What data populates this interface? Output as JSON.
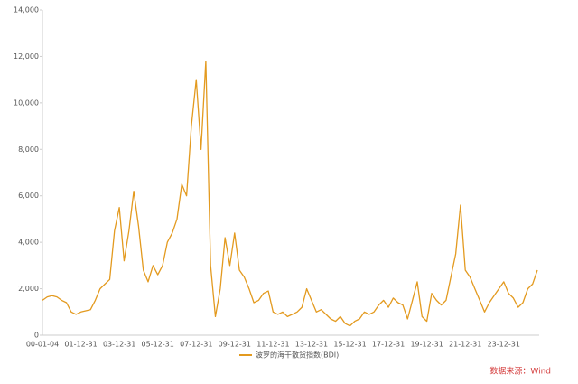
{
  "chart_data": {
    "type": "line",
    "categories": [
      "00-01-04",
      null,
      null,
      null,
      null,
      null,
      null,
      null,
      "01-12-31",
      null,
      null,
      null,
      null,
      null,
      null,
      null,
      "03-12-31",
      null,
      null,
      null,
      null,
      null,
      null,
      null,
      "05-12-31",
      null,
      null,
      null,
      null,
      null,
      null,
      null,
      "07-12-31",
      null,
      null,
      null,
      null,
      null,
      null,
      null,
      "09-12-31",
      null,
      null,
      null,
      null,
      null,
      null,
      null,
      "11-12-31",
      null,
      null,
      null,
      null,
      null,
      null,
      null,
      "13-12-31",
      null,
      null,
      null,
      null,
      null,
      null,
      null,
      "15-12-31",
      null,
      null,
      null,
      null,
      null,
      null,
      null,
      "17-12-31",
      null,
      null,
      null,
      null,
      null,
      null,
      null,
      "19-12-31",
      null,
      null,
      null,
      null,
      null,
      null,
      null,
      "21-12-31",
      null,
      null,
      null,
      null,
      null,
      null,
      null,
      "23-12-31",
      null,
      null,
      null,
      null,
      null,
      null,
      null
    ],
    "series": [
      {
        "name": "波罗的海干散货指数(BDI)",
        "color": "#e39a1f",
        "values": [
          1500,
          1650,
          1700,
          1650,
          1500,
          1400,
          1000,
          900,
          1000,
          1050,
          1100,
          1500,
          2000,
          2200,
          2400,
          4500,
          5500,
          3200,
          4500,
          6200,
          4700,
          2800,
          2300,
          3000,
          2600,
          3000,
          4000,
          4400,
          5000,
          6500,
          6000,
          9000,
          11000,
          8000,
          11800,
          3000,
          800,
          2000,
          4200,
          3000,
          4400,
          2800,
          2500,
          2000,
          1400,
          1500,
          1800,
          1900,
          1000,
          900,
          1000,
          800,
          900,
          1000,
          1200,
          2000,
          1500,
          1000,
          1100,
          900,
          700,
          600,
          800,
          500,
          400,
          600,
          700,
          1000,
          900,
          1000,
          1300,
          1500,
          1200,
          1600,
          1400,
          1300,
          700,
          1500,
          2300,
          800,
          600,
          1800,
          1500,
          1300,
          1500,
          2500,
          3500,
          5600,
          2800,
          2500,
          2000,
          1500,
          1000,
          1400,
          1700,
          2000,
          2300,
          1800,
          1600,
          1200,
          1400,
          2000,
          2200,
          2800
        ]
      }
    ],
    "ylim": [
      0,
      14000
    ],
    "yticks": [
      0,
      {
        "value": 2000,
        "label": "2,000"
      },
      {
        "value": 4000,
        "label": "4,000"
      },
      {
        "value": 6000,
        "label": "6,000"
      },
      {
        "value": 8000,
        "label": "8,000"
      },
      {
        "value": 10000,
        "label": "10,000"
      },
      {
        "value": 12000,
        "label": "12,000"
      },
      {
        "value": 14000,
        "label": "14,000"
      }
    ],
    "legend_position": "bottom",
    "source": "数据来源：Wind"
  }
}
